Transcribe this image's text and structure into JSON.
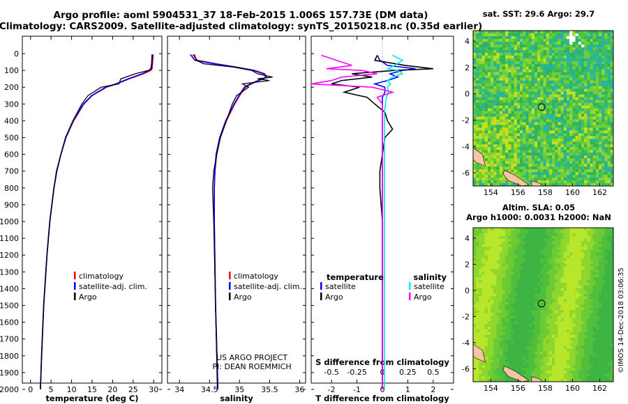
{
  "header": {
    "line1": "Argo profile: aoml 5904531_37 18-Feb-2015 1.006S 157.73E (DM data)",
    "line2": "Climatology: CARS2009. Satellite-adjusted climatology: synTS_20150218.nc (0.35d earlier)"
  },
  "colors": {
    "climatology": "#ff0000",
    "satellite": "#0000ff",
    "argo": "#000000",
    "sal_sat": "#00e5ee",
    "sal_argo": "#ff00ff"
  },
  "credit": {
    "line1": "US ARGO PROJECT",
    "line2": "PI: DEAN ROEMMICH"
  },
  "watermark": "©IMOS 14-Dec-2018 03:06:35",
  "chart_data": [
    {
      "type": "line",
      "name": "temperature-profile",
      "xlabel": "temperature (deg C)",
      "xlim": [
        -2,
        32
      ],
      "xticks": [
        "0",
        "5",
        "10",
        "15",
        "20",
        "25",
        "30"
      ],
      "ylim": [
        0,
        2060
      ],
      "yticks": [
        "0",
        "100",
        "200",
        "300",
        "400",
        "500",
        "600",
        "700",
        "800",
        "900",
        "1000",
        "1100",
        "1200",
        "1300",
        "1400",
        "1500",
        "1600",
        "1700",
        "1800",
        "1900",
        "2000"
      ],
      "legend": [
        "climatology",
        "satellite-adj. clim.",
        "Argo"
      ],
      "depth": [
        5,
        60,
        90,
        100,
        120,
        150,
        180,
        200,
        250,
        300,
        400,
        500,
        600,
        700,
        800,
        1000,
        1200,
        1500,
        1800,
        2000
      ],
      "series": [
        {
          "name": "climatology",
          "values": [
            29.9,
            29.7,
            29.6,
            29.3,
            27.5,
            24.0,
            21.0,
            18.5,
            15.0,
            13.0,
            10.5,
            8.6,
            7.4,
            6.4,
            5.7,
            4.7,
            4.0,
            3.2,
            2.7,
            2.4
          ]
        },
        {
          "name": "satellite-adj. clim.",
          "values": [
            29.6,
            29.5,
            29.3,
            28.9,
            27.2,
            23.8,
            20.8,
            18.3,
            14.9,
            12.9,
            10.4,
            8.6,
            7.4,
            6.4,
            5.7,
            4.7,
            4.0,
            3.2,
            2.7,
            2.4
          ]
        },
        {
          "name": "Argo",
          "values": [
            29.7,
            29.6,
            29.5,
            28.7,
            25.5,
            22.0,
            21.5,
            17.2,
            14.0,
            12.5,
            10.3,
            8.5,
            7.4,
            6.3,
            5.7,
            4.7,
            4.0,
            3.2,
            2.7,
            2.4
          ]
        }
      ]
    },
    {
      "type": "line",
      "name": "salinity-profile",
      "xlabel": "salinity",
      "xlim": [
        33.8,
        36.1
      ],
      "xticks": [
        "34",
        "34.5",
        "35",
        "35.5",
        "36"
      ],
      "ylim": [
        0,
        2060
      ],
      "legend": [
        "climatology",
        "satellite-adj. clim.",
        "Argo"
      ],
      "depth": [
        5,
        40,
        60,
        80,
        100,
        120,
        140,
        150,
        160,
        180,
        200,
        250,
        300,
        400,
        500,
        600,
        700,
        800,
        1000,
        1500,
        2000
      ],
      "series": [
        {
          "name": "climatology",
          "values": [
            34.22,
            34.3,
            34.6,
            34.95,
            35.25,
            35.42,
            35.45,
            35.4,
            35.32,
            35.2,
            35.1,
            35.0,
            34.92,
            34.78,
            34.68,
            34.62,
            34.59,
            34.58,
            34.58,
            34.6,
            34.64
          ]
        },
        {
          "name": "satellite-adj. clim.",
          "values": [
            34.18,
            34.26,
            34.58,
            34.93,
            35.23,
            35.4,
            35.44,
            35.39,
            35.31,
            35.18,
            35.08,
            34.99,
            34.91,
            34.77,
            34.67,
            34.61,
            34.59,
            34.58,
            34.58,
            34.6,
            34.64
          ]
        },
        {
          "name": "Argo",
          "values": [
            34.25,
            34.28,
            34.4,
            34.9,
            35.2,
            35.3,
            35.55,
            35.3,
            35.5,
            35.05,
            35.15,
            34.95,
            34.88,
            34.78,
            34.68,
            34.62,
            34.57,
            34.55,
            34.57,
            34.6,
            34.63
          ]
        }
      ]
    },
    {
      "type": "line",
      "name": "difference-profile",
      "xlabel": "T difference from climatology",
      "xlabel_top": "S difference from climatology",
      "xlim": [
        -2.8,
        2.8
      ],
      "xticks": [
        "-2",
        "-1",
        "0",
        "1",
        "2"
      ],
      "xticks_top": [
        "-0.5",
        "-0.25",
        "0",
        "0.25",
        "0.5"
      ],
      "ylim": [
        0,
        2060
      ],
      "legend_left_title": "temperature",
      "legend_right_title": "salinity",
      "legend_left": [
        "satellite",
        "Argo"
      ],
      "legend_right": [
        "satellite",
        "Argo"
      ],
      "depth": [
        10,
        40,
        70,
        90,
        100,
        120,
        140,
        160,
        180,
        200,
        230,
        260,
        300,
        350,
        400,
        450,
        500,
        600,
        700,
        800,
        1000,
        1300,
        1600,
        1900,
        2000
      ],
      "series": [
        {
          "name": "temperature satellite",
          "values": [
            -0.2,
            -0.1,
            0.2,
            1.3,
            0.8,
            0.3,
            0.6,
            0.2,
            -0.3,
            0.1,
            0.1,
            0.0,
            0.0,
            0.0,
            0.0,
            0.0,
            0.0,
            0.0,
            0.0,
            0.0,
            0.0,
            0.0,
            0.0,
            0.0,
            0.0
          ]
        },
        {
          "name": "temperature Argo",
          "values": [
            -0.2,
            -0.3,
            0.9,
            2.0,
            0.5,
            -1.2,
            -0.4,
            -1.6,
            -2.0,
            -0.9,
            -1.5,
            -0.6,
            -0.3,
            0.1,
            0.2,
            0.4,
            0.1,
            0.0,
            -0.1,
            -0.1,
            0.0,
            0.0,
            0.0,
            0.0,
            0.0
          ]
        },
        {
          "name": "salinity satellite",
          "values": [
            0.1,
            0.2,
            0.12,
            0.05,
            0.15,
            0.2,
            0.1,
            0.05,
            0.08,
            0.05,
            0.06,
            0.04,
            0.03,
            0.02,
            0.02,
            0.02,
            0.02,
            0.02,
            0.02,
            0.02,
            0.02,
            0.02,
            0.02,
            0.02,
            0.02
          ]
        },
        {
          "name": "salinity Argo",
          "values": [
            -0.6,
            -0.45,
            -0.3,
            -0.55,
            -0.2,
            -0.05,
            -0.4,
            -0.5,
            -0.7,
            -0.1,
            0.1,
            -0.05,
            0.0,
            0.0,
            0.0,
            0.0,
            0.0,
            0.0,
            0.0,
            0.0,
            0.0,
            0.0,
            0.0,
            0.0,
            0.0
          ]
        }
      ]
    },
    {
      "type": "heatmap",
      "name": "sst-map",
      "title": "sat. SST: 29.6 Argo: 29.7",
      "xticks": [
        "154",
        "156",
        "158",
        "160",
        "162"
      ],
      "yticks": [
        "4",
        "2",
        "0",
        "-2",
        "-4",
        "-6"
      ],
      "xlim": [
        152.7,
        163.0
      ],
      "ylim": [
        -7.0,
        4.8
      ],
      "marker": {
        "lon": 157.73,
        "lat": -1.006
      }
    },
    {
      "type": "heatmap",
      "name": "sla-map",
      "title_line1": "Altim. SLA: 0.05",
      "title_line2": "Argo h1000: 0.0031 h2000: NaN",
      "xticks": [
        "154",
        "156",
        "158",
        "160",
        "162"
      ],
      "yticks": [
        "4",
        "2",
        "0",
        "-2",
        "-4",
        "-6"
      ],
      "xlim": [
        152.7,
        163.0
      ],
      "ylim": [
        -7.0,
        4.8
      ],
      "marker": {
        "lon": 157.73,
        "lat": -1.006
      }
    }
  ]
}
